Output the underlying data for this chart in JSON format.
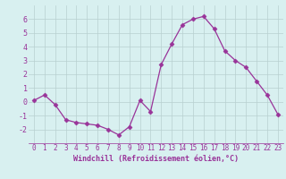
{
  "x": [
    0,
    1,
    2,
    3,
    4,
    5,
    6,
    7,
    8,
    9,
    10,
    11,
    12,
    13,
    14,
    15,
    16,
    17,
    18,
    19,
    20,
    21,
    22,
    23
  ],
  "y": [
    0.1,
    0.5,
    -0.2,
    -1.3,
    -1.5,
    -1.6,
    -1.7,
    -2.0,
    -2.4,
    -1.8,
    0.1,
    -0.7,
    2.7,
    4.2,
    5.6,
    6.0,
    6.2,
    5.3,
    3.7,
    3.0,
    2.5,
    1.5,
    0.5,
    -0.9
  ],
  "line_color": "#993399",
  "marker": "D",
  "marker_size": 2.5,
  "bg_color": "#d8f0f0",
  "grid_color": "#b8d0d0",
  "xlabel": "Windchill (Refroidissement éolien,°C)",
  "xlabel_color": "#993399",
  "tick_color": "#993399",
  "ylim": [
    -3,
    7
  ],
  "xlim": [
    -0.5,
    23.5
  ],
  "yticks": [
    -2,
    -1,
    0,
    1,
    2,
    3,
    4,
    5,
    6
  ],
  "xticks": [
    0,
    1,
    2,
    3,
    4,
    5,
    6,
    7,
    8,
    9,
    10,
    11,
    12,
    13,
    14,
    15,
    16,
    17,
    18,
    19,
    20,
    21,
    22,
    23
  ]
}
